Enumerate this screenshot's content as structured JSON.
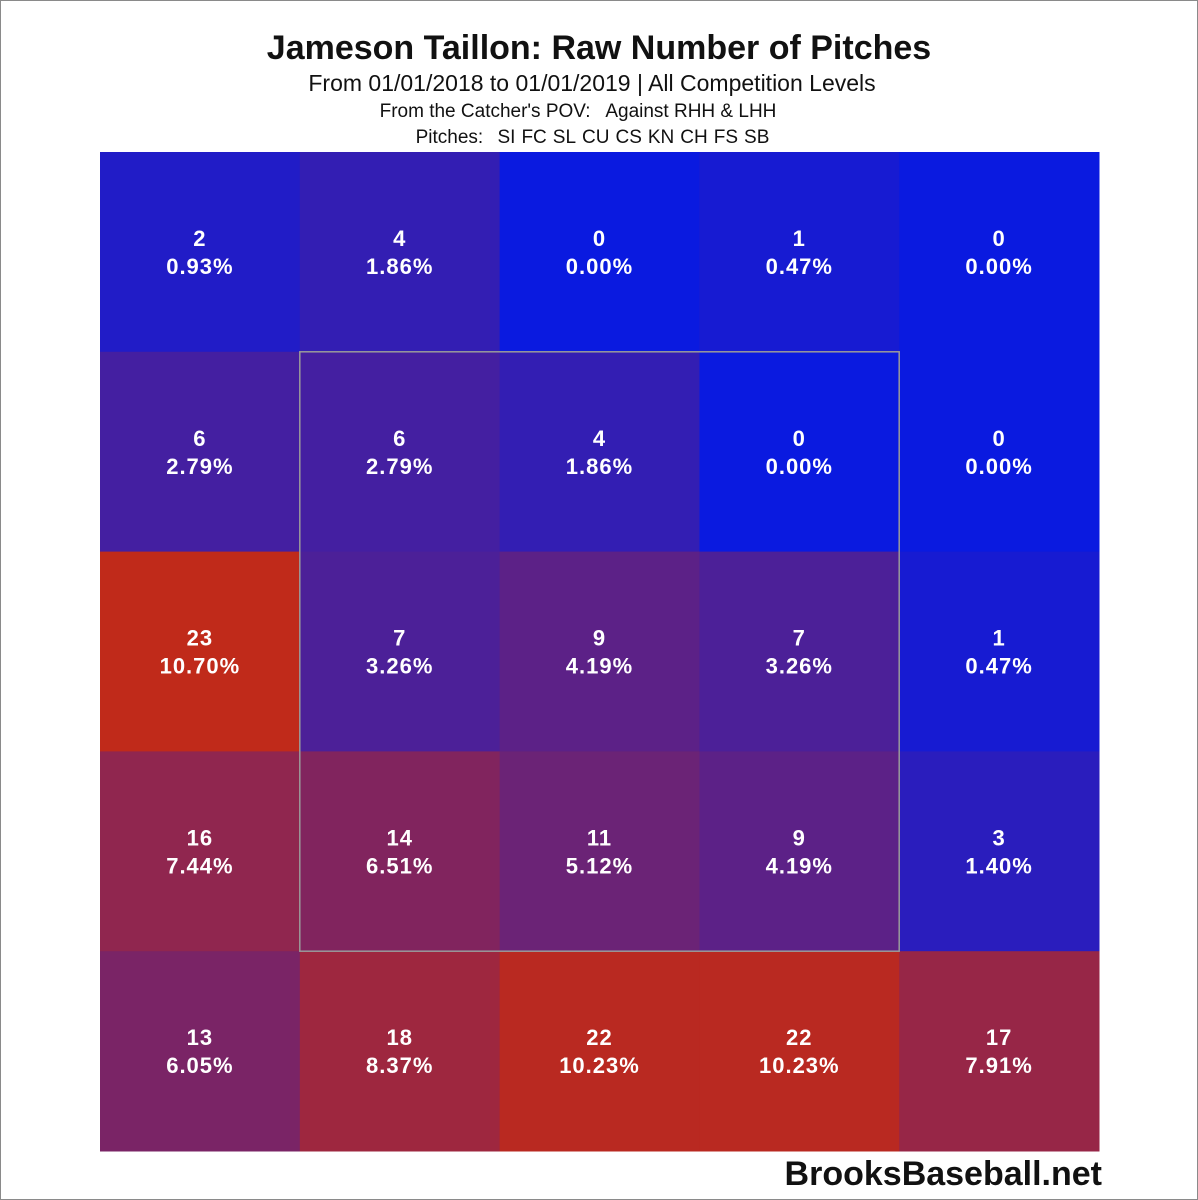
{
  "chart_data": {
    "type": "heatmap",
    "title": "Jameson Taillon: Raw Number of Pitches",
    "subtitle": "From 01/01/2018 to 01/01/2019 | All Competition Levels",
    "pov_text": "From the Catcher's POV:   Against RHH & LHH",
    "pitches_label": "Pitches:",
    "pitch_types": [
      "SI",
      "FC",
      "SL",
      "CU",
      "CS",
      "KN",
      "CH",
      "FS",
      "SB"
    ],
    "rows": 5,
    "cols": 5,
    "counts": [
      [
        2,
        4,
        0,
        1,
        0
      ],
      [
        6,
        6,
        4,
        0,
        0
      ],
      [
        23,
        7,
        9,
        7,
        1
      ],
      [
        16,
        14,
        11,
        9,
        3
      ],
      [
        13,
        18,
        22,
        22,
        17
      ]
    ],
    "percents": [
      [
        "0.93%",
        "1.86%",
        "0.00%",
        "0.47%",
        "0.00%"
      ],
      [
        "2.79%",
        "2.79%",
        "1.86%",
        "0.00%",
        "0.00%"
      ],
      [
        "10.70%",
        "3.26%",
        "4.19%",
        "3.26%",
        "0.47%"
      ],
      [
        "7.44%",
        "6.51%",
        "5.12%",
        "4.19%",
        "1.40%"
      ],
      [
        "6.05%",
        "8.37%",
        "10.23%",
        "10.23%",
        "7.91%"
      ]
    ],
    "strike_zone": "inner 3x3 cells outlined",
    "color_scale": {
      "low": "#0a1ae0",
      "high": "#c02a1a"
    }
  },
  "watermark": "BrooksBaseball.net"
}
